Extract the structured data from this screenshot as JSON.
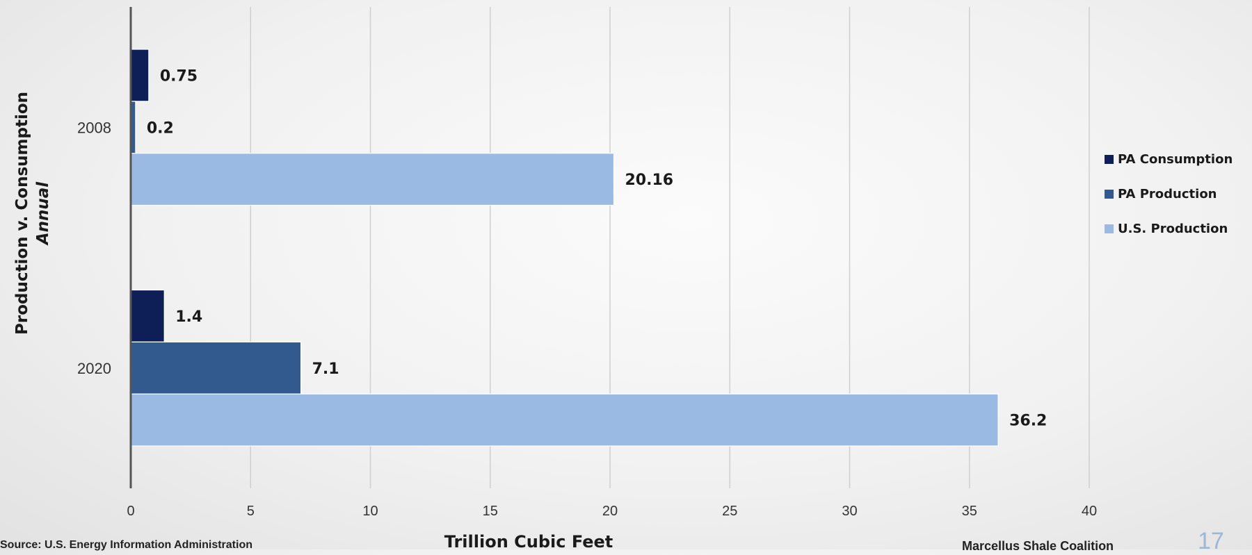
{
  "chart_data": {
    "type": "bar",
    "orientation": "horizontal",
    "categories": [
      "2008",
      "2020"
    ],
    "series": [
      {
        "name": "PA Consumption",
        "values": [
          0.75,
          1.4
        ],
        "labels": [
          "0.75",
          "1.4"
        ],
        "color": "#0d1f56"
      },
      {
        "name": "PA Production",
        "values": [
          0.2,
          7.1
        ],
        "labels": [
          "0.2",
          "7.1"
        ],
        "color": "#325a8e"
      },
      {
        "name": "U.S. Production",
        "values": [
          20.16,
          36.2
        ],
        "labels": [
          "20.16",
          "36.2"
        ],
        "color": "#9bbae3"
      }
    ],
    "xlabel": "Trillion Cubic Feet",
    "ylabel": "Production v. Consumption",
    "ylabel_sub": "Annual",
    "xlim": [
      0,
      40
    ],
    "xticks": [
      0,
      5,
      10,
      15,
      20,
      25,
      30,
      35,
      40
    ],
    "grid": true,
    "legend_position": "right"
  },
  "footer": {
    "source": "Source: U.S. Energy Information Administration",
    "brand": "Marcellus Shale Coalition",
    "page_number": "17"
  }
}
